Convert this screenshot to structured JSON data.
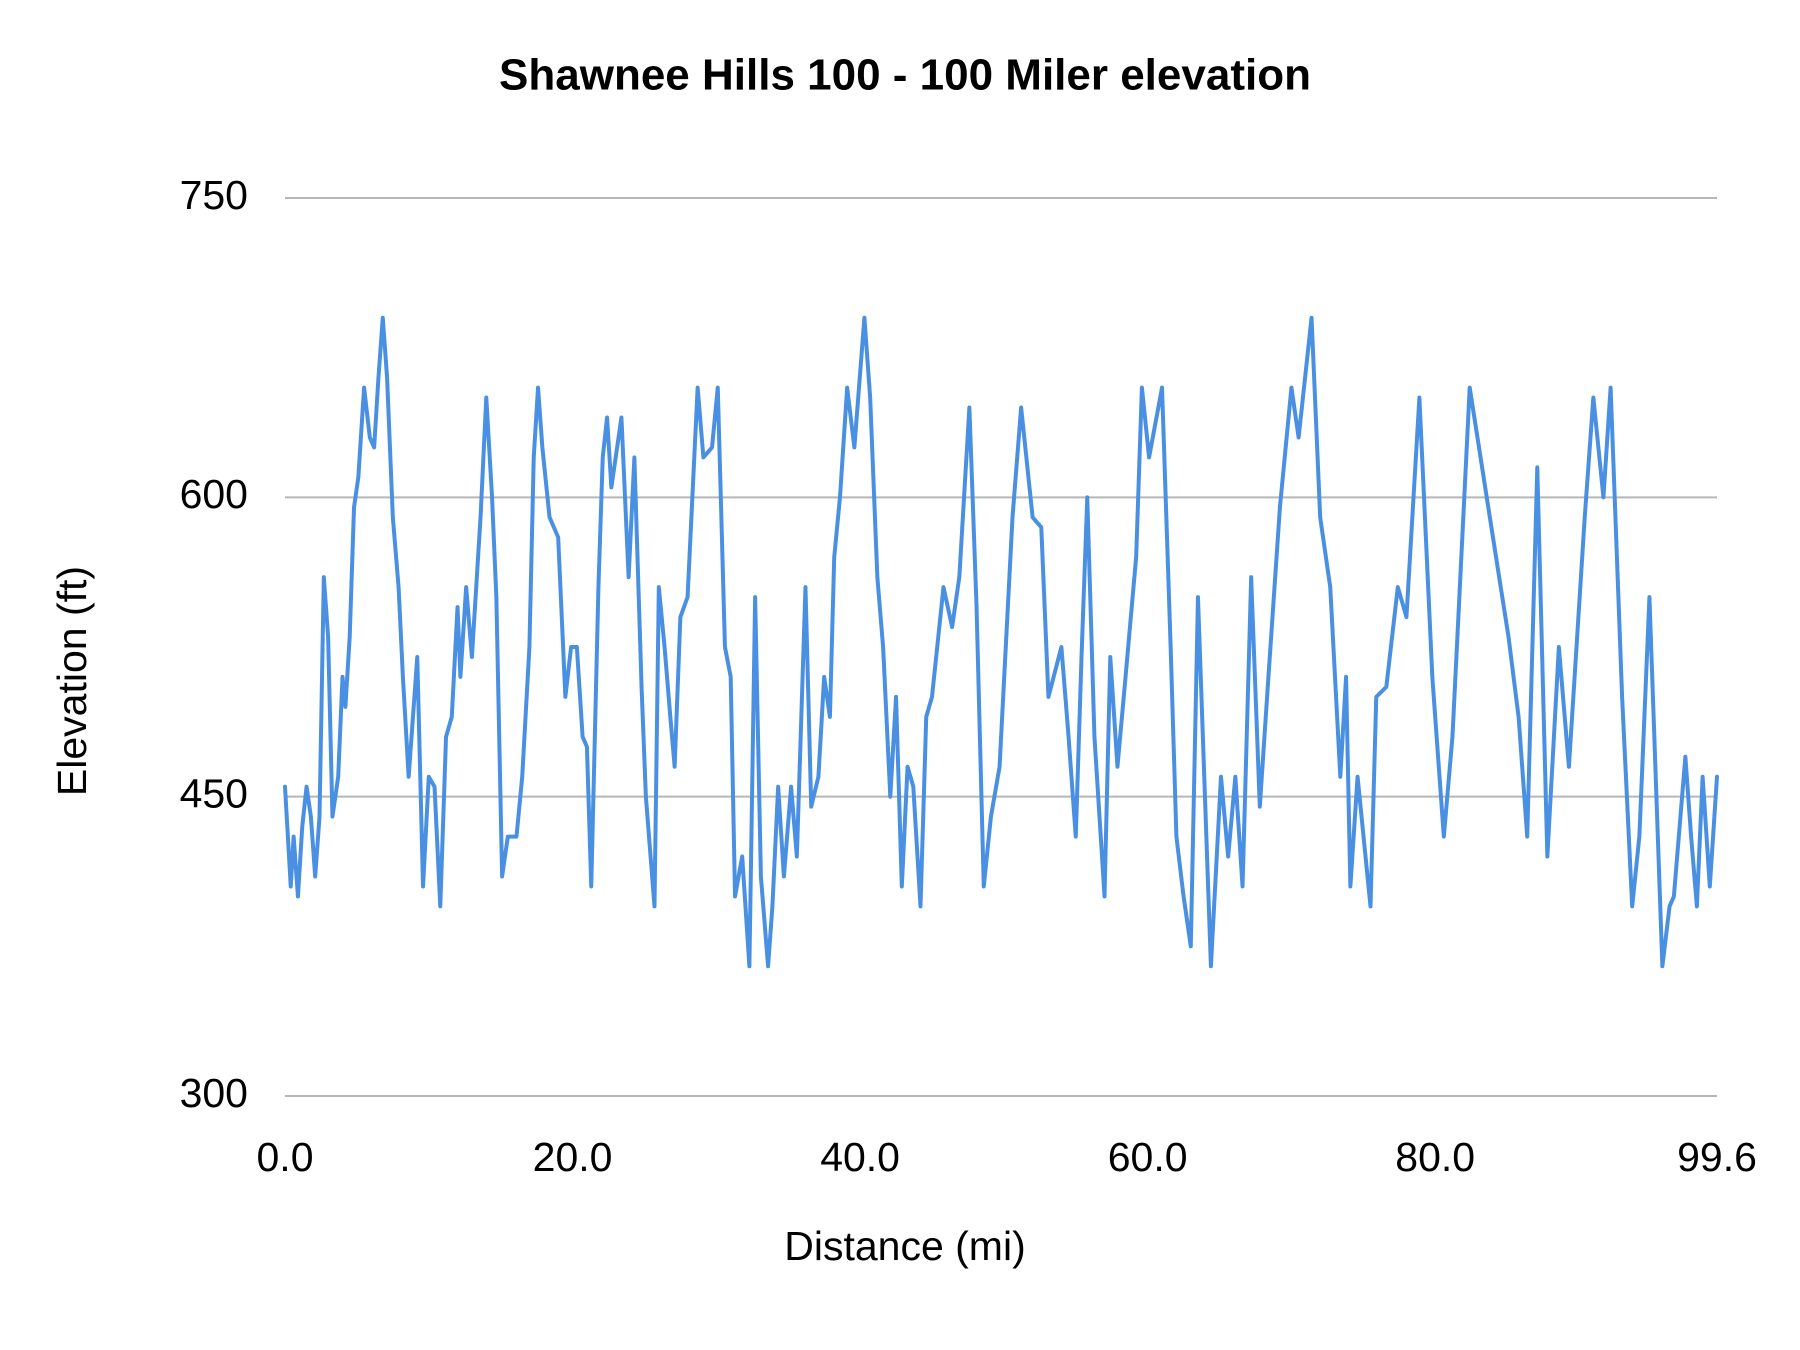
{
  "chart_data": {
    "type": "line",
    "title": "Shawnee Hills 100 - 100 Miler elevation",
    "x_label": "Distance (mi)",
    "y_label": "Elevation (ft)",
    "color": "#4a90e2",
    "grid": true,
    "xlim": [
      0,
      99.6
    ],
    "xticks": [
      {
        "value": 0,
        "label": "0.0"
      },
      {
        "value": 20,
        "label": "20.0"
      },
      {
        "value": 40,
        "label": "40.0"
      },
      {
        "value": 60,
        "label": "60.0"
      },
      {
        "value": 80,
        "label": "80.0"
      },
      {
        "value": 99.6,
        "label": "99.6"
      }
    ],
    "ylim": [
      300,
      750
    ],
    "yticks": [
      300,
      450,
      600,
      750
    ],
    "x": [
      0,
      0.4,
      0.6,
      0.9,
      1.2,
      1.5,
      1.8,
      2.1,
      2.4,
      2.7,
      3.0,
      3.3,
      3.7,
      4.0,
      4.2,
      4.5,
      4.8,
      5.1,
      5.5,
      5.9,
      6.2,
      6.5,
      6.8,
      7.1,
      7.5,
      7.9,
      8.2,
      8.6,
      8.9,
      9.2,
      9.6,
      10.0,
      10.4,
      10.8,
      11.2,
      11.6,
      12.0,
      12.2,
      12.6,
      13.0,
      13.6,
      14.0,
      14.4,
      14.7,
      15.1,
      15.5,
      16.1,
      16.5,
      17.0,
      17.3,
      17.6,
      17.9,
      18.4,
      19.0,
      19.5,
      19.9,
      20.3,
      20.7,
      21.0,
      21.3,
      21.8,
      22.1,
      22.4,
      22.7,
      23.1,
      23.4,
      23.9,
      24.3,
      24.8,
      25.1,
      25.7,
      26.0,
      26.4,
      26.8,
      27.1,
      27.5,
      28.0,
      28.7,
      29.1,
      29.7,
      30.1,
      30.6,
      31.0,
      31.3,
      31.8,
      32.3,
      32.7,
      33.1,
      33.6,
      33.9,
      34.3,
      34.7,
      35.2,
      35.6,
      36.2,
      36.6,
      37.1,
      37.5,
      37.9,
      38.2,
      38.6,
      39.1,
      39.6,
      40.3,
      40.7,
      41.2,
      41.6,
      42.1,
      42.5,
      42.9,
      43.3,
      43.7,
      44.2,
      44.6,
      45.0,
      45.8,
      46.4,
      46.9,
      47.6,
      48.1,
      48.6,
      49.1,
      49.7,
      50.6,
      51.2,
      52.0,
      52.6,
      53.1,
      54.0,
      54.5,
      55.0,
      55.4,
      55.8,
      56.3,
      57.0,
      57.4,
      57.9,
      58.4,
      59.2,
      59.6,
      60.1,
      61.0,
      61.6,
      62.0,
      62.5,
      63.0,
      63.5,
      64.4,
      65.1,
      65.6,
      66.1,
      66.6,
      67.2,
      67.8,
      68.4,
      69.2,
      70.0,
      70.5,
      71.4,
      72.0,
      72.7,
      73.4,
      73.8,
      74.1,
      74.6,
      75.5,
      75.9,
      76.6,
      77.4,
      78.0,
      78.9,
      79.8,
      80.6,
      81.2,
      82.4,
      83.8,
      85.1,
      85.8,
      86.4,
      87.1,
      87.8,
      88.6,
      89.3,
      90.4,
      91.0,
      91.7,
      92.2,
      93.0,
      93.7,
      94.2,
      94.9,
      95.8,
      96.3,
      96.6,
      97.4,
      97.8,
      98.2,
      98.6,
      99.1,
      99.6
    ],
    "values": [
      455,
      405,
      430,
      400,
      435,
      455,
      440,
      410,
      440,
      560,
      530,
      440,
      460,
      510,
      495,
      530,
      595,
      610,
      655,
      630,
      625,
      660,
      690,
      660,
      590,
      555,
      510,
      460,
      490,
      520,
      405,
      460,
      455,
      395,
      480,
      490,
      545,
      510,
      555,
      520,
      590,
      650,
      600,
      550,
      410,
      430,
      430,
      460,
      525,
      620,
      655,
      625,
      590,
      580,
      500,
      525,
      525,
      480,
      475,
      405,
      555,
      620,
      640,
      605,
      625,
      640,
      560,
      620,
      505,
      450,
      395,
      555,
      525,
      490,
      465,
      540,
      550,
      655,
      620,
      625,
      655,
      525,
      510,
      400,
      420,
      365,
      550,
      410,
      365,
      395,
      455,
      410,
      455,
      420,
      555,
      445,
      460,
      510,
      490,
      570,
      600,
      655,
      625,
      690,
      650,
      560,
      525,
      450,
      500,
      405,
      465,
      455,
      395,
      490,
      500,
      555,
      535,
      560,
      645,
      545,
      405,
      440,
      465,
      590,
      645,
      590,
      585,
      500,
      525,
      480,
      430,
      520,
      600,
      480,
      400,
      520,
      465,
      505,
      570,
      655,
      620,
      655,
      525,
      430,
      400,
      375,
      550,
      365,
      460,
      420,
      460,
      405,
      560,
      445,
      510,
      595,
      655,
      630,
      690,
      590,
      555,
      460,
      510,
      405,
      460,
      395,
      500,
      505,
      555,
      540,
      650,
      510,
      430,
      480,
      655,
      590,
      530,
      490,
      430,
      615,
      420,
      525,
      465,
      590,
      650,
      600,
      655,
      500,
      395,
      430,
      550,
      365,
      395,
      400,
      470,
      430,
      395,
      460,
      405,
      460
    ]
  }
}
